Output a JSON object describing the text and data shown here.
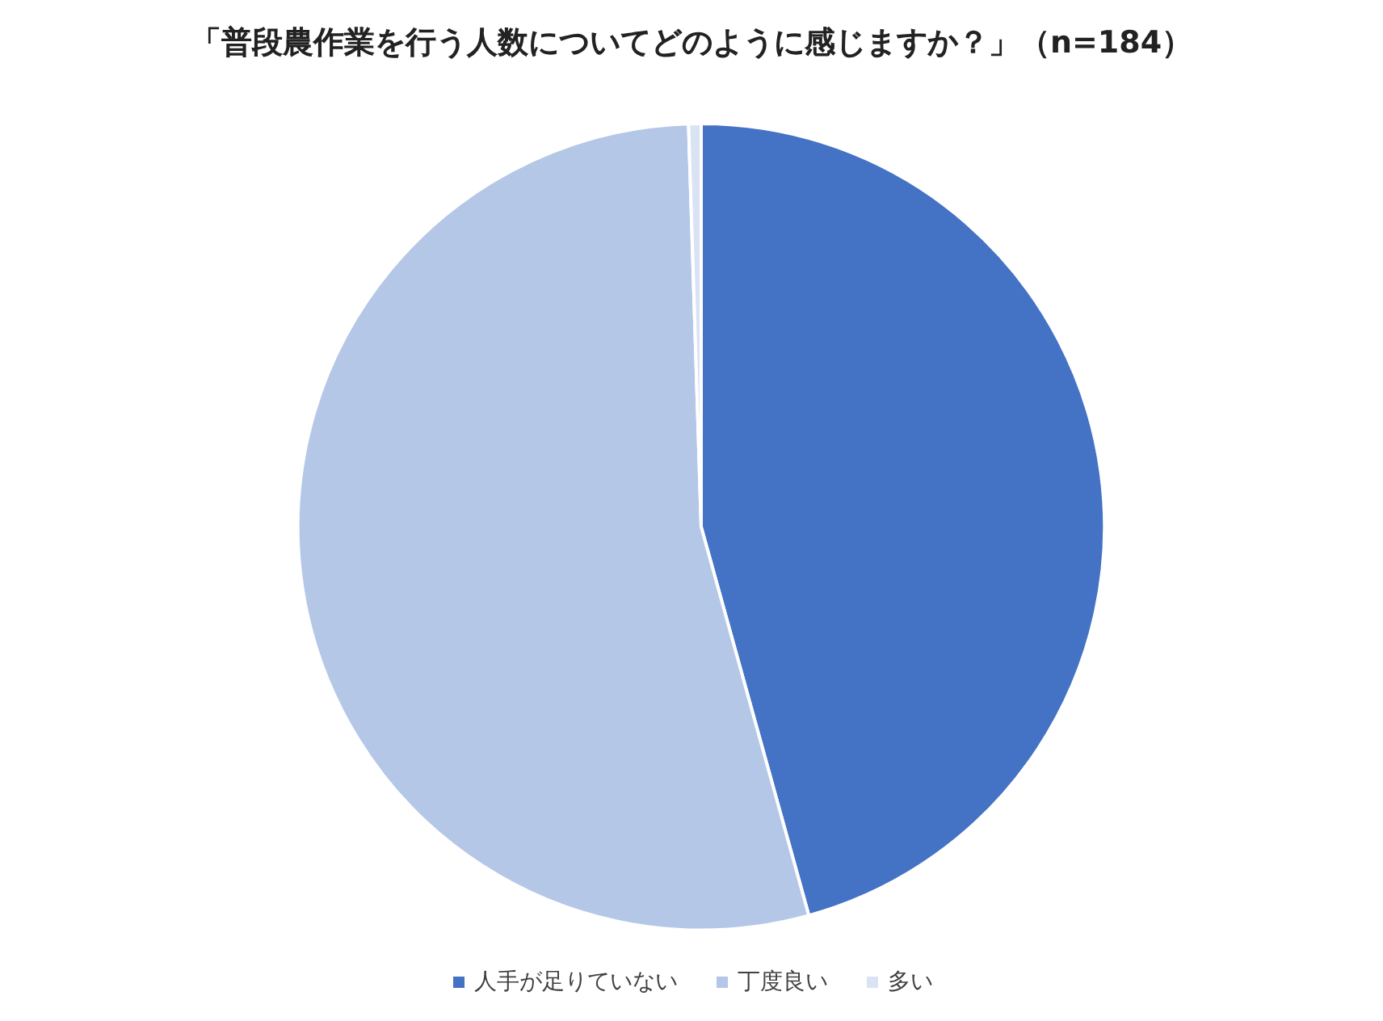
{
  "chart_data": {
    "type": "pie",
    "title": "「普段農作業を行う人数についてどのように感じますか？」（n=184）",
    "categories": [
      "人手が足りていない",
      "丁度良い",
      "多い"
    ],
    "values": [
      45.7,
      53.8,
      0.5
    ],
    "colors": [
      "#4472c4",
      "#b4c7e7",
      "#dae3f3"
    ],
    "legend": "bottom"
  }
}
